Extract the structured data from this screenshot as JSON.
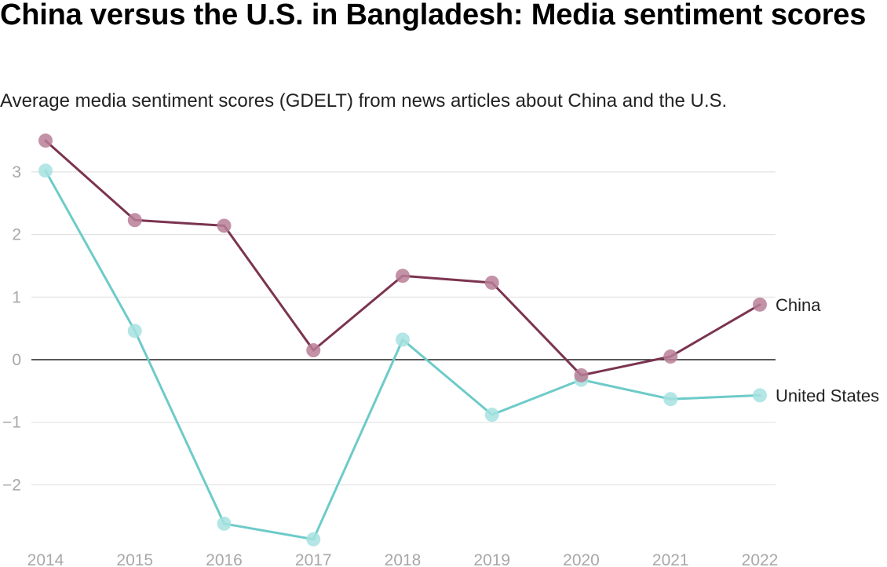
{
  "header": {
    "title": "China versus the U.S. in Bangladesh: Media sentiment scores",
    "subtitle": "Average media sentiment scores (GDELT) from news articles about China and the U.S."
  },
  "chart_data": {
    "type": "line",
    "title": "China versus the U.S. in Bangladesh: Media sentiment scores",
    "subtitle": "Average media sentiment scores (GDELT) from news articles about China and the U.S.",
    "xlabel": "",
    "ylabel": "",
    "x": [
      "2014",
      "2015",
      "2016",
      "2017",
      "2018",
      "2019",
      "2020",
      "2021",
      "2022"
    ],
    "yticks": [
      -2,
      -1,
      0,
      1,
      2,
      3
    ],
    "ylim": [
      -3,
      3.6
    ],
    "grid": true,
    "legend": "direct labels at line ends",
    "series": [
      {
        "name": "China",
        "color": "#7b3450",
        "marker_color": "#b87f96",
        "values": [
          3.5,
          2.23,
          2.14,
          0.15,
          1.34,
          1.23,
          -0.25,
          0.05,
          0.88
        ]
      },
      {
        "name": "United States",
        "color": "#6dcbc8",
        "marker_color": "#a6e2e0",
        "values": [
          3.02,
          0.46,
          -2.62,
          -2.87,
          0.32,
          -0.88,
          -0.32,
          -0.63,
          -0.57
        ]
      }
    ]
  }
}
